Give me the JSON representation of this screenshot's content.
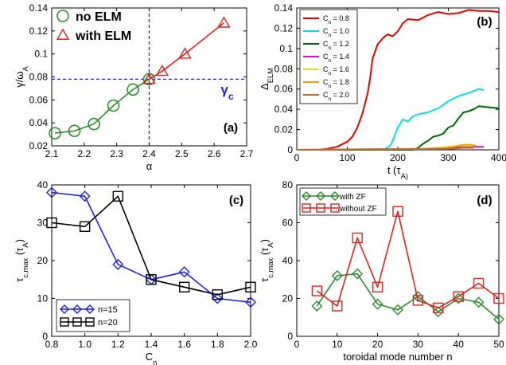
{
  "colors": {
    "green": "#2e8b2e",
    "red": "#e02020",
    "blue": "#1f1fe0",
    "black": "#000000",
    "gamma_c": "#1f1fe0"
  },
  "chart_data": [
    {
      "id": "a",
      "type": "line",
      "panel_label": "(a)",
      "xlabel": "α",
      "ylabel": "γ/ω_A",
      "xlim": [
        2.1,
        2.7
      ],
      "ylim": [
        0.02,
        0.14
      ],
      "xticks": [
        "2.1",
        "2.2",
        "2.3",
        "2.4",
        "2.5",
        "2.6",
        "2.7"
      ],
      "yticks": [
        "0.02",
        "0.04",
        "0.06",
        "0.08",
        "0.1",
        "0.12",
        "0.14"
      ],
      "legend_position": "top-left",
      "series": [
        {
          "name": "no ELM",
          "color": "#2e8b2e",
          "marker": "circle",
          "x": [
            2.11,
            2.17,
            2.23,
            2.29,
            2.35,
            2.4
          ],
          "y": [
            0.031,
            0.033,
            0.039,
            0.055,
            0.069,
            0.078
          ]
        },
        {
          "name": "with ELM",
          "color": "#e02020",
          "marker": "triangle",
          "x": [
            2.4,
            2.44,
            2.51,
            2.63
          ],
          "y": [
            0.078,
            0.085,
            0.1,
            0.127
          ]
        }
      ],
      "reference_lines": {
        "x": 2.4,
        "y": 0.078,
        "label": "γ_c"
      }
    },
    {
      "id": "b",
      "type": "line",
      "panel_label": "(b)",
      "xlabel": "t (τ_A)",
      "ylabel": "Δ_ELM",
      "xlim": [
        0,
        400
      ],
      "ylim": [
        0,
        0.14
      ],
      "xticks": [
        "0",
        "100",
        "200",
        "300",
        "400"
      ],
      "yticks": [
        "0",
        "0.02",
        "0.04",
        "0.06",
        "0.08",
        "0.1",
        "0.12",
        "0.14"
      ],
      "legend_position": "top-left",
      "series": [
        {
          "name": "C_n = 0.8",
          "color": "#e00000",
          "x": [
            0,
            40,
            60,
            80,
            100,
            110,
            120,
            130,
            140,
            145,
            150,
            160,
            170,
            180,
            190,
            200,
            210,
            220,
            240,
            260,
            280,
            300,
            320,
            340,
            360,
            380,
            400
          ],
          "y": [
            0,
            0,
            0.001,
            0.003,
            0.008,
            0.013,
            0.022,
            0.036,
            0.055,
            0.07,
            0.09,
            0.104,
            0.11,
            0.114,
            0.112,
            0.117,
            0.125,
            0.129,
            0.128,
            0.133,
            0.136,
            0.134,
            0.135,
            0.138,
            0.137,
            0.137,
            0.136
          ]
        },
        {
          "name": "C_n = 1.0",
          "color": "#00e0e0",
          "x": [
            0,
            160,
            175,
            185,
            190,
            200,
            210,
            220,
            230,
            240,
            260,
            280,
            300,
            320,
            340,
            360,
            370
          ],
          "y": [
            0,
            0,
            0.001,
            0.004,
            0.009,
            0.022,
            0.03,
            0.028,
            0.033,
            0.035,
            0.037,
            0.041,
            0.048,
            0.053,
            0.056,
            0.06,
            0.059
          ]
        },
        {
          "name": "C_n = 1.2",
          "color": "#006400",
          "x": [
            0,
            230,
            240,
            250,
            260,
            270,
            280,
            290,
            300,
            310,
            320,
            330,
            340,
            350,
            360,
            380,
            400
          ],
          "y": [
            0,
            0,
            0.002,
            0.006,
            0.009,
            0.013,
            0.014,
            0.016,
            0.022,
            0.024,
            0.031,
            0.037,
            0.038,
            0.04,
            0.043,
            0.042,
            0.041
          ]
        },
        {
          "name": "C_n = 1.4",
          "color": "#e000e0",
          "x": [
            0,
            280,
            300,
            320,
            340,
            360,
            370
          ],
          "y": [
            0,
            0.001,
            0.002,
            0.003,
            0.003,
            0.003,
            0.003
          ]
        },
        {
          "name": "C_n = 1.6",
          "color": "#e0e000",
          "x": [
            0,
            250,
            280,
            300,
            320,
            340,
            350
          ],
          "y": [
            0,
            0.001,
            0.002,
            0.003,
            0.004,
            0.004,
            0.004
          ]
        },
        {
          "name": "C_n = 1.8",
          "color": "#f0a000",
          "x": [
            0,
            260,
            290,
            310,
            330,
            345,
            355
          ],
          "y": [
            0,
            0.001,
            0.002,
            0.003,
            0.005,
            0.005,
            0.004
          ]
        },
        {
          "name": "C_n = 2.0",
          "color": "#b86a3a",
          "x": [
            0,
            300,
            330,
            350
          ],
          "y": [
            0,
            0.001,
            0.002,
            0.002
          ]
        }
      ]
    },
    {
      "id": "c",
      "type": "line",
      "panel_label": "(c)",
      "xlabel": "C_n",
      "ylabel": "τ_c,max (τ_A)",
      "xlim": [
        0.8,
        2.0
      ],
      "ylim": [
        0,
        40
      ],
      "xticks": [
        "0.8",
        "1.0",
        "1.2",
        "1.4",
        "1.6",
        "1.8",
        "2.0"
      ],
      "yticks": [
        "0",
        "10",
        "20",
        "30",
        "40"
      ],
      "legend_position": "bottom-left",
      "series": [
        {
          "name": "n=15",
          "color": "#1f1fe0",
          "marker": "diamond",
          "x": [
            0.8,
            1.0,
            1.2,
            1.4,
            1.6,
            1.8,
            2.0
          ],
          "y": [
            38,
            37,
            19,
            15,
            17,
            10,
            9
          ]
        },
        {
          "name": "n=20",
          "color": "#000000",
          "marker": "square",
          "x": [
            0.8,
            1.0,
            1.2,
            1.4,
            1.6,
            1.8,
            2.0
          ],
          "y": [
            30,
            29,
            37,
            15,
            13,
            11,
            13
          ]
        }
      ]
    },
    {
      "id": "d",
      "type": "line",
      "panel_label": "(d)",
      "xlabel": "toroidal mode number n",
      "ylabel": "τ_c,max (τ_A)",
      "xlim": [
        0,
        50
      ],
      "ylim": [
        0,
        80
      ],
      "xticks": [
        "0",
        "10",
        "20",
        "30",
        "40",
        "50"
      ],
      "yticks": [
        "0",
        "20",
        "40",
        "60",
        "80"
      ],
      "legend_position": "top-left",
      "series": [
        {
          "name": "with ZF",
          "color": "#2e8b2e",
          "marker": "diamond",
          "x": [
            5,
            10,
            15,
            20,
            25,
            30,
            35,
            40,
            45,
            50
          ],
          "y": [
            16,
            32,
            33,
            17,
            14,
            21,
            13,
            20,
            18,
            9
          ]
        },
        {
          "name": "without ZF",
          "color": "#e02020",
          "marker": "square",
          "x": [
            5,
            10,
            15,
            20,
            25,
            30,
            35,
            40,
            45,
            50
          ],
          "y": [
            24,
            16,
            52,
            26,
            66,
            19,
            15,
            21,
            28,
            20
          ]
        }
      ]
    }
  ]
}
